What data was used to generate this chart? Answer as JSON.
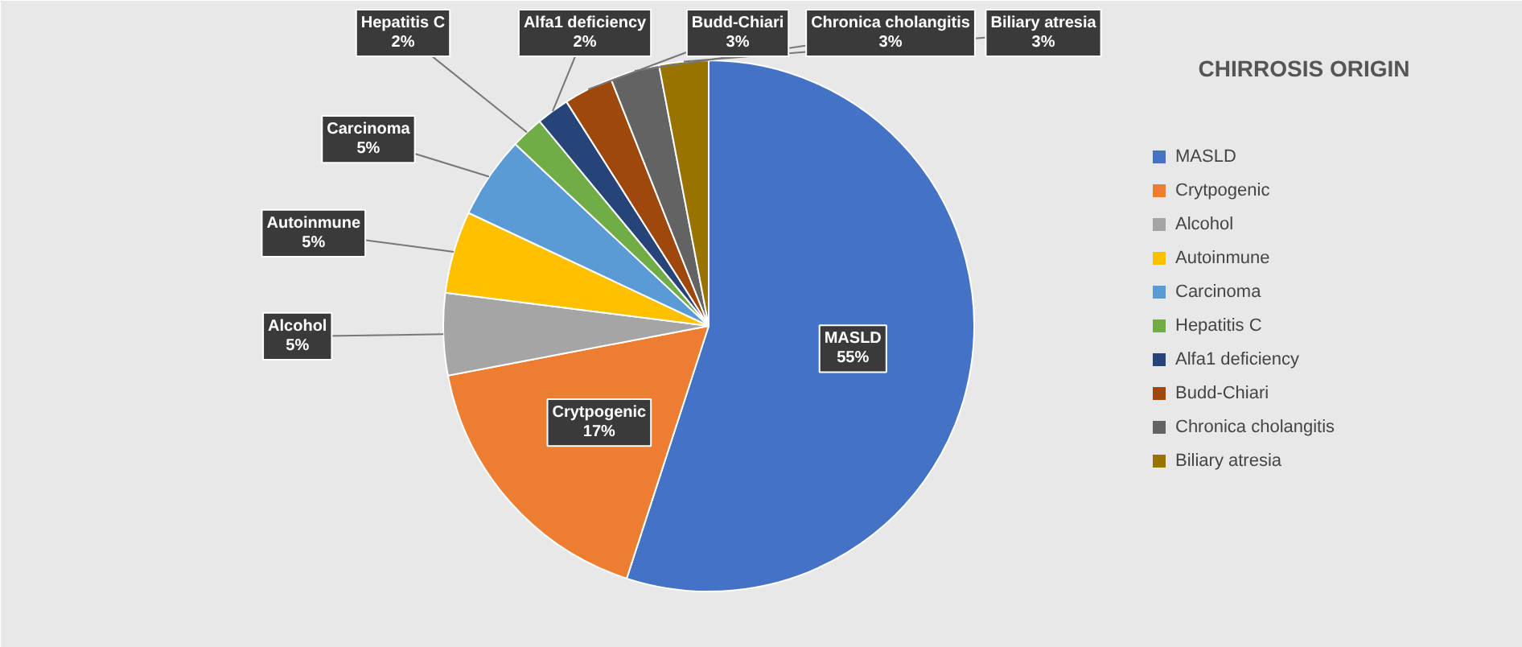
{
  "chart_data": {
    "type": "pie",
    "title": "CHIRROSIS ORIGIN",
    "categories": [
      "MASLD",
      "Crytpogenic",
      "Alcohol",
      "Autoinmune",
      "Carcinoma",
      "Hepatitis C",
      "Alfa1 deficiency",
      "Budd-Chiari",
      "Chronica cholangitis",
      "Biliary atresia"
    ],
    "values": [
      55,
      17,
      5,
      5,
      5,
      2,
      2,
      3,
      3,
      3
    ],
    "value_labels": [
      "55%",
      "17%",
      "5%",
      "5%",
      "5%",
      "2%",
      "2%",
      "3%",
      "3%",
      "3%"
    ],
    "colors": [
      "#4472c4",
      "#ed7d31",
      "#a5a5a5",
      "#ffc000",
      "#5b9bd5",
      "#70ad47",
      "#264478",
      "#9e480e",
      "#636363",
      "#997300"
    ],
    "legend": "right"
  }
}
